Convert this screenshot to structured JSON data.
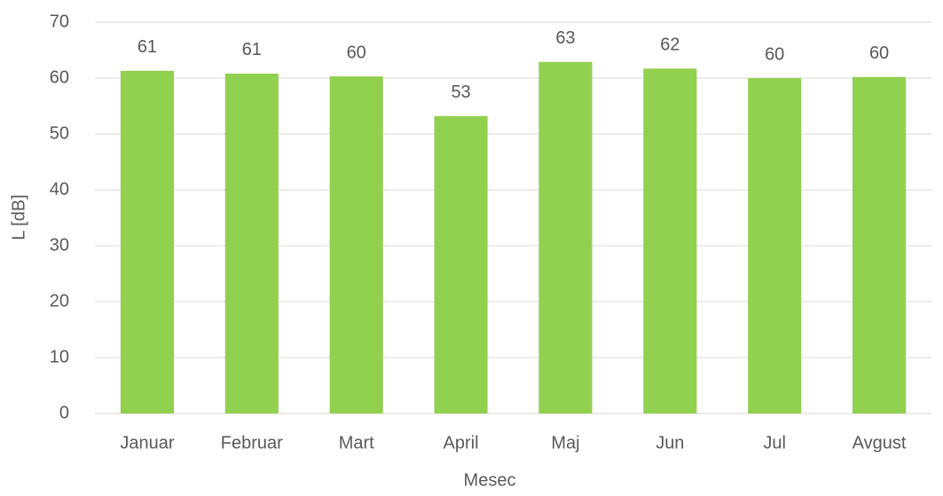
{
  "chart_data": {
    "type": "bar",
    "x_label": "Mesec",
    "y_label": "L [dB]",
    "categories": [
      "Januar",
      "Februar",
      "Mart",
      "April",
      "Maj",
      "Jun",
      "Jul",
      "Avgust"
    ],
    "values": [
      61.3,
      60.8,
      60.3,
      53.2,
      62.9,
      61.7,
      60.0,
      60.2
    ],
    "value_labels": [
      "61",
      "61",
      "60",
      "53",
      "63",
      "62",
      "60",
      "60"
    ],
    "color": "#92d050",
    "ylim": [
      0,
      70
    ],
    "yticks": [
      0,
      10,
      20,
      30,
      40,
      50,
      60,
      70
    ],
    "grid": true
  }
}
